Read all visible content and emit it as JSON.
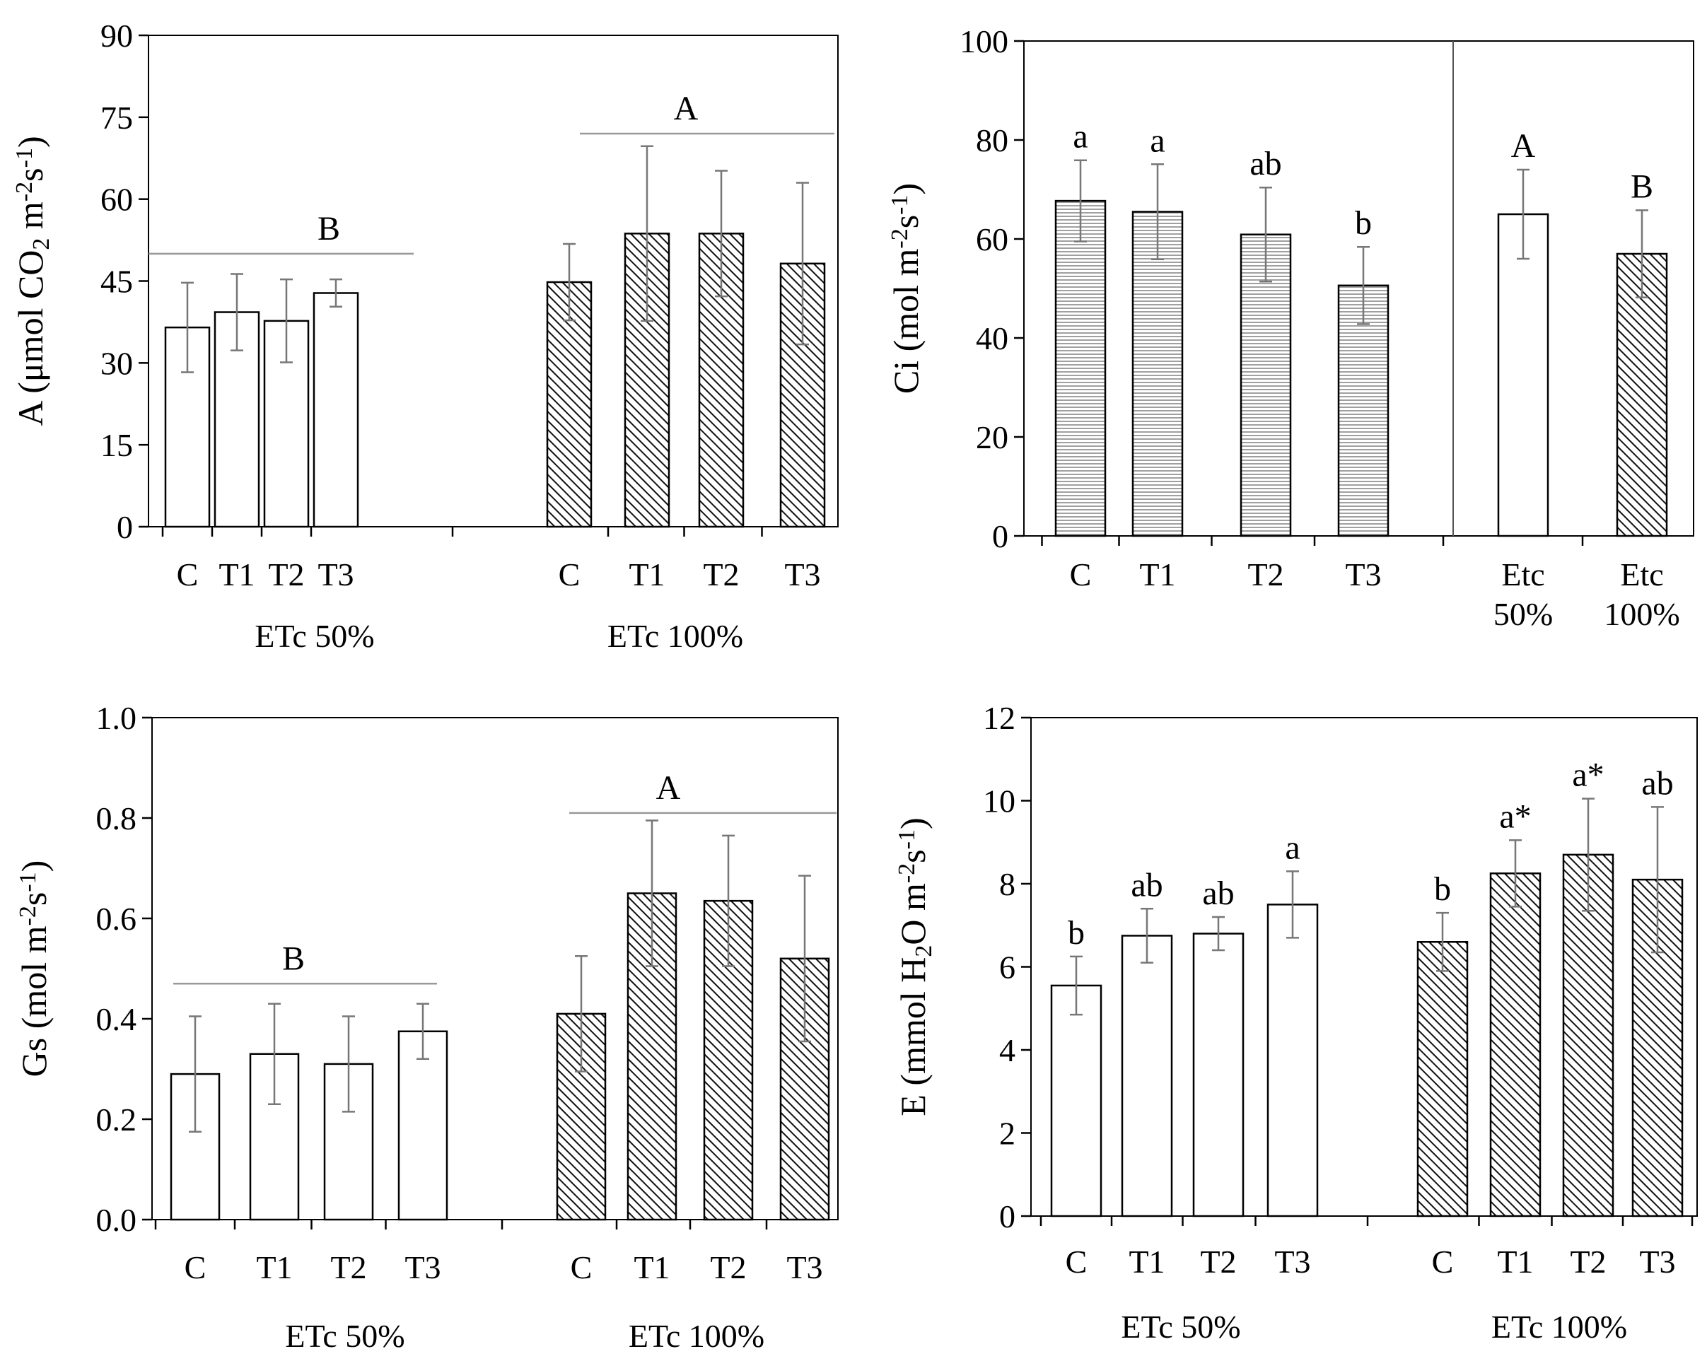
{
  "chart_data": [
    {
      "type": "bar",
      "panel": "A",
      "ylabel_pre": "A (μmol CO",
      "ylabel_sub": "2",
      "ylabel_mid": " m",
      "ylabel_sup1": "-2",
      "ylabel_s": "s",
      "ylabel_sup2": "-1",
      "ylabel_post": ")",
      "ylim": [
        0,
        90
      ],
      "yticks": [
        "0",
        "15",
        "30",
        "45",
        "60",
        "75",
        "90"
      ],
      "groups": [
        {
          "name": "ETc 50%",
          "categories": [
            "C",
            "T1",
            "T2",
            "T3"
          ],
          "values": [
            36.5,
            39.3,
            37.7,
            42.8
          ],
          "errors": [
            8.2,
            7.0,
            7.6,
            2.5
          ],
          "pattern": "white",
          "letter": "B",
          "letter_value": 50
        },
        {
          "name": "ETc 100%",
          "categories": [
            "C",
            "T1",
            "T2",
            "T3"
          ],
          "values": [
            44.8,
            53.7,
            53.7,
            48.2
          ],
          "errors": [
            7.0,
            16.0,
            11.5,
            14.8
          ],
          "pattern": "diag",
          "letter": "A",
          "letter_value": 72
        }
      ]
    },
    {
      "type": "bar",
      "panel": "Ci",
      "ylabel_pre": "Ci (mol m",
      "ylabel_sup1": "-2",
      "ylabel_s": "s",
      "ylabel_sup2": "-1",
      "ylabel_post": ")",
      "ylim": [
        0,
        100
      ],
      "yticks": [
        "0",
        "20",
        "40",
        "60",
        "80",
        "100"
      ],
      "groups": [
        {
          "name": "",
          "categories": [
            "C",
            "T1",
            "T2",
            "T3"
          ],
          "values": [
            67.7,
            65.5,
            60.9,
            50.6
          ],
          "errors": [
            8.2,
            9.6,
            9.5,
            7.8
          ],
          "pattern": "horiz",
          "letters": [
            "a",
            "a",
            "ab",
            "b"
          ]
        },
        {
          "name": "",
          "categories": [
            "Etc\n50%",
            "Etc\n100%"
          ],
          "values": [
            65.0,
            57.0
          ],
          "errors": [
            9.0,
            8.8
          ],
          "pattern": "mixed",
          "letters": [
            "A",
            "B"
          ]
        }
      ]
    },
    {
      "type": "bar",
      "panel": "Gs",
      "ylabel_pre": "Gs (mol m",
      "ylabel_sup1": "-2",
      "ylabel_s": "s",
      "ylabel_sup2": "-1",
      "ylabel_post": ")",
      "ylim": [
        0,
        1.0
      ],
      "yticks": [
        "0.0",
        "0.2",
        "0.4",
        "0.6",
        "0.8",
        "1.0"
      ],
      "groups": [
        {
          "name": "ETc 50%",
          "categories": [
            "C",
            "T1",
            "T2",
            "T3"
          ],
          "values": [
            0.29,
            0.33,
            0.31,
            0.375
          ],
          "errors": [
            0.115,
            0.1,
            0.095,
            0.055
          ],
          "pattern": "white",
          "letter": "B",
          "letter_value": 0.47
        },
        {
          "name": "ETc 100%",
          "categories": [
            "C",
            "T1",
            "T2",
            "T3"
          ],
          "values": [
            0.41,
            0.65,
            0.635,
            0.52
          ],
          "errors": [
            0.115,
            0.145,
            0.13,
            0.165
          ],
          "pattern": "diag",
          "letter": "A",
          "letter_value": 0.81
        }
      ]
    },
    {
      "type": "bar",
      "panel": "E",
      "ylabel_pre": "E (mmol H",
      "ylabel_sub": "2",
      "ylabel_mid": "O m",
      "ylabel_sup1": "-2",
      "ylabel_s": "s",
      "ylabel_sup2": "-1",
      "ylabel_post": ")",
      "ylim": [
        0,
        12
      ],
      "yticks": [
        "0",
        "2",
        "4",
        "6",
        "8",
        "10",
        "12"
      ],
      "groups": [
        {
          "name": "ETc 50%",
          "categories": [
            "C",
            "T1",
            "T2",
            "T3"
          ],
          "values": [
            5.55,
            6.75,
            6.8,
            7.5
          ],
          "errors": [
            0.7,
            0.65,
            0.4,
            0.8
          ],
          "pattern": "white",
          "letters": [
            "b",
            "ab",
            "ab",
            "a"
          ]
        },
        {
          "name": "ETc 100%",
          "categories": [
            "C",
            "T1",
            "T2",
            "T3"
          ],
          "values": [
            6.6,
            8.25,
            8.7,
            8.1
          ],
          "errors": [
            0.7,
            0.8,
            1.35,
            1.75
          ],
          "pattern": "diag",
          "letters": [
            "b",
            "a*",
            "a*",
            "ab"
          ]
        }
      ]
    }
  ]
}
